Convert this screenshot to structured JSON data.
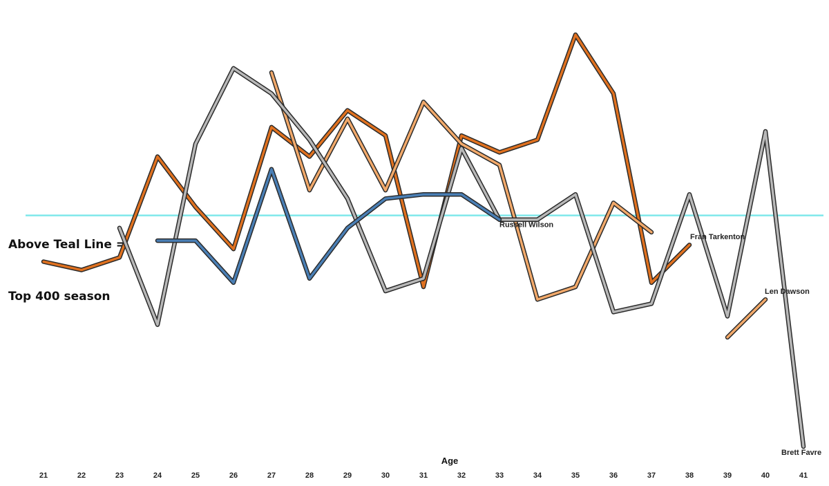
{
  "annotation": {
    "line1": "Above Teal Line =",
    "line2": "Top 400 season"
  },
  "chart_data": {
    "type": "line",
    "xlabel": "Age",
    "ylabel": "",
    "x": [
      21,
      22,
      23,
      24,
      25,
      26,
      27,
      28,
      29,
      30,
      31,
      32,
      33,
      34,
      35,
      36,
      37,
      38,
      39,
      40,
      41
    ],
    "ylim": [
      0,
      100
    ],
    "reference_line": {
      "y": 55,
      "color": "#7fe8ea"
    },
    "grid": false,
    "legend": "none",
    "series": [
      {
        "name": "Fran Tarkenton",
        "color": "#e0711f",
        "points": [
          [
            21,
            44
          ],
          [
            22,
            42
          ],
          [
            23,
            45
          ],
          [
            24,
            69
          ],
          [
            25,
            57
          ],
          [
            26,
            47
          ],
          [
            27,
            76
          ],
          [
            28,
            69
          ],
          [
            29,
            80
          ],
          [
            30,
            74
          ],
          [
            31,
            38
          ],
          [
            32,
            74
          ],
          [
            33,
            70
          ],
          [
            34,
            73
          ],
          [
            35,
            98
          ],
          [
            36,
            84
          ],
          [
            37,
            39
          ],
          [
            38,
            48
          ]
        ]
      },
      {
        "name": "Len Dawson",
        "color": "#f2a96a",
        "segments": [
          [
            [
              27,
              89
            ],
            [
              28,
              61
            ],
            [
              29,
              78
            ],
            [
              30,
              61
            ],
            [
              31,
              82
            ],
            [
              32,
              72
            ],
            [
              33,
              67
            ],
            [
              34,
              35
            ],
            [
              35,
              38
            ],
            [
              36,
              58
            ],
            [
              37,
              51
            ]
          ],
          [
            [
              39,
              26
            ],
            [
              40,
              35
            ]
          ]
        ]
      },
      {
        "name": "Brett Favre",
        "color": "#b8b8b8",
        "points": [
          [
            23,
            52
          ],
          [
            24,
            29
          ],
          [
            25,
            72
          ],
          [
            26,
            90
          ],
          [
            27,
            84
          ],
          [
            28,
            73
          ],
          [
            29,
            59
          ],
          [
            30,
            37
          ],
          [
            31,
            40
          ],
          [
            32,
            71
          ],
          [
            33,
            54
          ],
          [
            34,
            54
          ],
          [
            35,
            60
          ],
          [
            36,
            32
          ],
          [
            37,
            34
          ],
          [
            38,
            60
          ],
          [
            39,
            31
          ],
          [
            40,
            75
          ],
          [
            41,
            0
          ]
        ]
      },
      {
        "name": "Russell Wilson",
        "color": "#4a7fb5",
        "points": [
          [
            24,
            49
          ],
          [
            25,
            49
          ],
          [
            26,
            39
          ],
          [
            27,
            66
          ],
          [
            28,
            40
          ],
          [
            29,
            52
          ],
          [
            30,
            59
          ],
          [
            31,
            60
          ],
          [
            32,
            60
          ],
          [
            33,
            54
          ]
        ]
      }
    ],
    "labels": [
      {
        "text": "Russell Wilson",
        "series": "Russell Wilson"
      },
      {
        "text": "Fran Tarkenton",
        "series": "Fran Tarkenton"
      },
      {
        "text": "Len Dawson",
        "series": "Len Dawson"
      },
      {
        "text": "Brett Favre",
        "series": "Brett Favre"
      }
    ]
  }
}
